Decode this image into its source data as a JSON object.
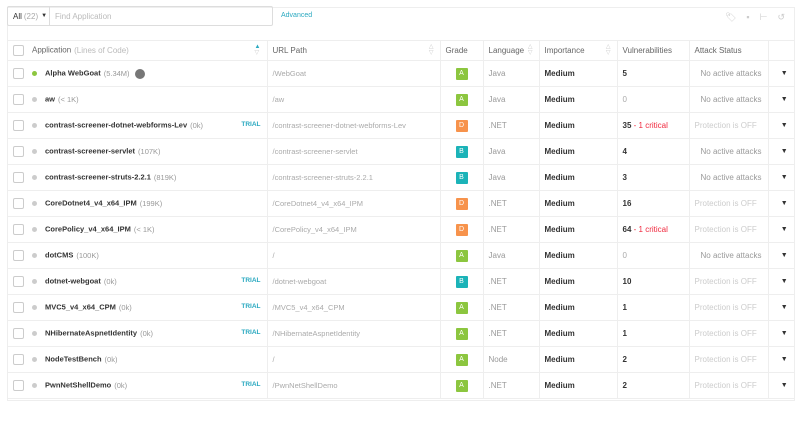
{
  "toolbar": {
    "filter_label": "All",
    "filter_count": "(22)",
    "search_placeholder": "Find Application",
    "advanced": "Advanced"
  },
  "columns": {
    "application": "Application",
    "application_hint": "(Lines of Code)",
    "url": "URL Path",
    "grade": "Grade",
    "language": "Language",
    "importance": "Importance",
    "vulnerabilities": "Vulnerabilities",
    "attack_status": "Attack Status"
  },
  "colors": {
    "grade_A": "#8cc63f",
    "grade_B": "#1bb3b8",
    "grade_D": "#f7934c",
    "accent": "#2aa9c0",
    "critical": "#f0293e"
  },
  "rows": [
    {
      "name": "Alpha WebGoat",
      "loc": "(5.34M)",
      "trial": "",
      "url": "/WebGoat",
      "grade": "A",
      "language": "Java",
      "importance": "Medium",
      "vulns": "5",
      "critical": "",
      "attack": "No active attacks",
      "active": true
    },
    {
      "name": "aw",
      "loc": "(< 1K)",
      "trial": "",
      "url": "/aw",
      "grade": "A",
      "language": "Java",
      "importance": "Medium",
      "vulns": "0",
      "critical": "",
      "attack": "No active attacks"
    },
    {
      "name": "contrast-screener-dotnet-webforms-Lev",
      "loc": "(0k)",
      "trial": "TRIAL",
      "url": "/contrast-screener-dotnet-webforms-Lev",
      "grade": "D",
      "language": ".NET",
      "importance": "Medium",
      "vulns": "35",
      "critical": " - 1 critical",
      "attack": "Protection is OFF"
    },
    {
      "name": "contrast-screener-servlet",
      "loc": "(107K)",
      "trial": "",
      "url": "/contrast-screener-servlet",
      "grade": "B",
      "language": "Java",
      "importance": "Medium",
      "vulns": "4",
      "critical": "",
      "attack": "No active attacks"
    },
    {
      "name": "contrast-screener-struts-2.2.1",
      "loc": "(819K)",
      "trial": "",
      "url": "/contrast-screener-struts-2.2.1",
      "grade": "B",
      "language": "Java",
      "importance": "Medium",
      "vulns": "3",
      "critical": "",
      "attack": "No active attacks"
    },
    {
      "name": "CoreDotnet4_v4_x64_IPM",
      "loc": "(199K)",
      "trial": "",
      "url": "/CoreDotnet4_v4_x64_IPM",
      "grade": "D",
      "language": ".NET",
      "importance": "Medium",
      "vulns": "16",
      "critical": "",
      "attack": "Protection is OFF"
    },
    {
      "name": "CorePolicy_v4_x64_IPM",
      "loc": "(< 1K)",
      "trial": "",
      "url": "/CorePolicy_v4_x64_IPM",
      "grade": "D",
      "language": ".NET",
      "importance": "Medium",
      "vulns": "64",
      "critical": " - 1 critical",
      "attack": "Protection is OFF"
    },
    {
      "name": "dotCMS",
      "loc": "(100K)",
      "trial": "",
      "url": "/",
      "grade": "A",
      "language": "Java",
      "importance": "Medium",
      "vulns": "0",
      "critical": "",
      "attack": "No active attacks"
    },
    {
      "name": "dotnet-webgoat",
      "loc": "(0k)",
      "trial": "TRIAL",
      "url": "/dotnet-webgoat",
      "grade": "B",
      "language": ".NET",
      "importance": "Medium",
      "vulns": "10",
      "critical": "",
      "attack": "Protection is OFF"
    },
    {
      "name": "MVC5_v4_x64_CPM",
      "loc": "(0k)",
      "trial": "TRIAL",
      "url": "/MVC5_v4_x64_CPM",
      "grade": "A",
      "language": ".NET",
      "importance": "Medium",
      "vulns": "1",
      "critical": "",
      "attack": "Protection is OFF"
    },
    {
      "name": "NHibernateAspnetIdentity",
      "loc": "(0k)",
      "trial": "TRIAL",
      "url": "/NHibernateAspnetIdentity",
      "grade": "A",
      "language": ".NET",
      "importance": "Medium",
      "vulns": "1",
      "critical": "",
      "attack": "Protection is OFF"
    },
    {
      "name": "NodeTestBench",
      "loc": "(0k)",
      "trial": "",
      "url": "/",
      "grade": "A",
      "language": "Node",
      "importance": "Medium",
      "vulns": "2",
      "critical": "",
      "attack": "Protection is OFF"
    },
    {
      "name": "PwnNetShellDemo",
      "loc": "(0k)",
      "trial": "TRIAL",
      "url": "/PwnNetShellDemo",
      "grade": "A",
      "language": ".NET",
      "importance": "Medium",
      "vulns": "2",
      "critical": "",
      "attack": "Protection is OFF"
    }
  ]
}
